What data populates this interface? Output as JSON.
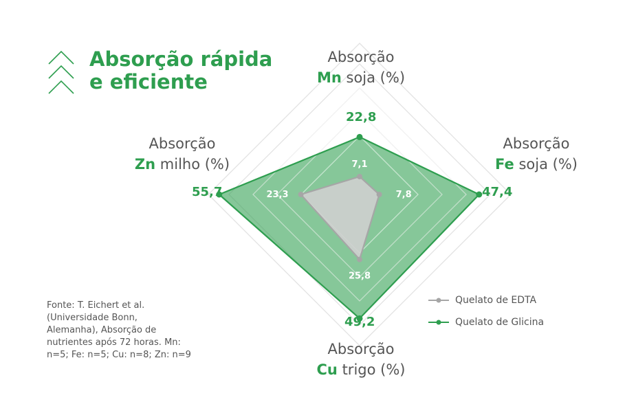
{
  "header": {
    "title_line1": "Absorção rápida",
    "title_line2": "e eficiente",
    "icon": "triple-chevron-up-icon"
  },
  "colors": {
    "glicina": "#2e9e4f",
    "edta": "#a6a6a6",
    "text": "#555555"
  },
  "chart_data": {
    "type": "radar",
    "axes": [
      {
        "prefix": "Absorção",
        "element": "Mn",
        "crop": "soja (%)"
      },
      {
        "prefix": "Absorção",
        "element": "Fe",
        "crop": "soja (%)"
      },
      {
        "prefix": "Absorção",
        "element": "Cu",
        "crop": "trigo (%)"
      },
      {
        "prefix": "Absorção",
        "element": "Zn",
        "crop": "milho (%)"
      }
    ],
    "series": [
      {
        "name": "Quelato de EDTA",
        "values": [
          7.1,
          7.8,
          25.8,
          23.3
        ],
        "labels": [
          "7,1",
          "7,8",
          "25,8",
          "23,3"
        ]
      },
      {
        "name": "Quelato de Glicina",
        "values": [
          22.8,
          47.4,
          49.2,
          55.7
        ],
        "labels": [
          "22,8",
          "47,4",
          "49,2",
          "55,7"
        ]
      }
    ]
  },
  "footnote": "Fonte: T. Eichert et al. (Universidade Bonn, Alemanha), Absorção de nutrientes após 72 horas. Mn: n=5; Fe: n=5; Cu: n=8; Zn: n=9"
}
